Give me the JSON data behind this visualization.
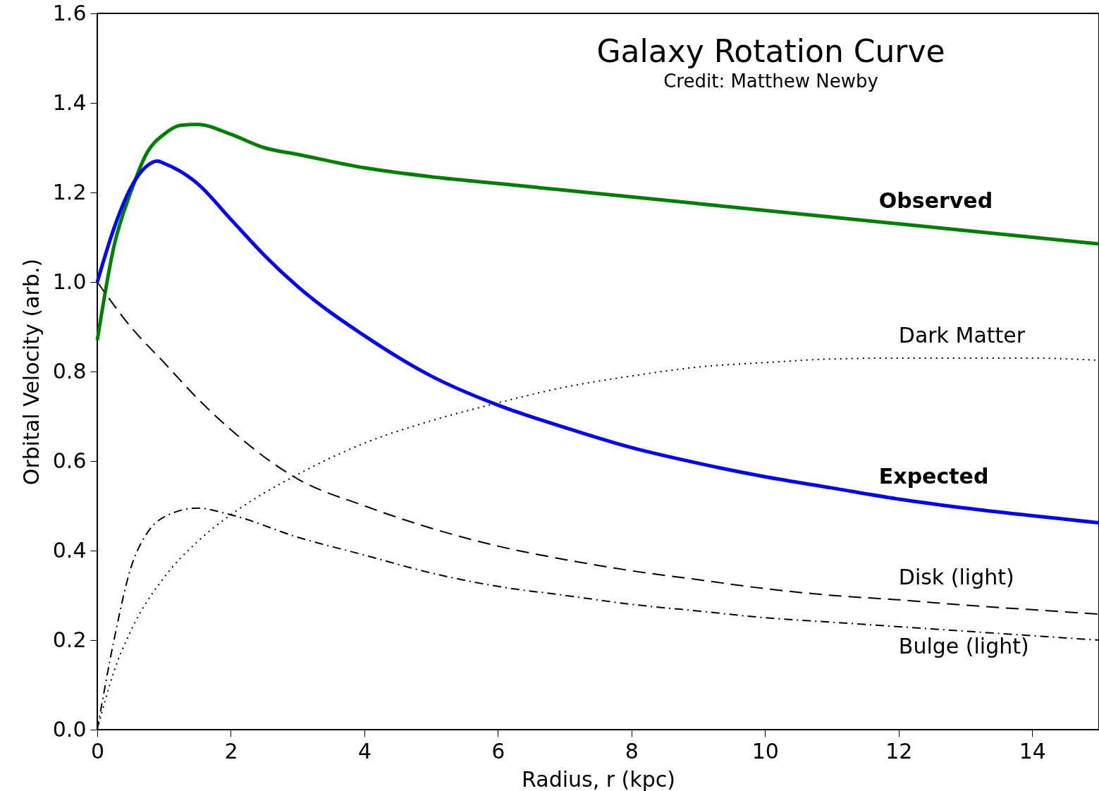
{
  "chart_data": {
    "type": "line",
    "title": "Galaxy Rotation Curve",
    "subtitle": "Credit:  Matthew Newby",
    "xlabel": "Radius, r (kpc)",
    "ylabel": "Orbital Velocity (arb.)",
    "xlim": [
      0,
      15
    ],
    "ylim": [
      0,
      1.6
    ],
    "xticks": [
      0,
      2,
      4,
      6,
      8,
      10,
      12,
      14
    ],
    "yticks": [
      {
        "value": 0,
        "label": "0.0"
      },
      0.2,
      0.4,
      0.6,
      0.8,
      {
        "value": 1,
        "label": "1.0"
      },
      1.2,
      1.4,
      1.6
    ],
    "grid": false,
    "legend": false,
    "series": [
      {
        "name": "Observed",
        "color": "#008000",
        "line_style": "solid",
        "x": [
          0,
          0.25,
          0.5,
          0.75,
          1,
          1.25,
          1.5,
          2,
          2.5,
          3,
          4,
          5,
          6,
          7,
          8,
          9,
          10,
          11,
          12,
          13,
          14,
          15
        ],
        "values": [
          0.87,
          1.08,
          1.2,
          1.29,
          1.33,
          1.35,
          1.352,
          1.33,
          1.3,
          1.285,
          1.255,
          1.235,
          1.22,
          1.205,
          1.19,
          1.175,
          1.16,
          1.145,
          1.13,
          1.115,
          1.1,
          1.085
        ]
      },
      {
        "name": "Expected",
        "color": "#0000ff",
        "line_style": "solid",
        "x": [
          0,
          0.25,
          0.5,
          0.75,
          0.9,
          1,
          1.5,
          2,
          2.5,
          3,
          4,
          5,
          6,
          7,
          8,
          9,
          10,
          11,
          12,
          13,
          14,
          15
        ],
        "values": [
          1.0,
          1.12,
          1.21,
          1.26,
          1.27,
          1.265,
          1.22,
          1.14,
          1.06,
          0.99,
          0.88,
          0.79,
          0.725,
          0.675,
          0.63,
          0.595,
          0.565,
          0.54,
          0.515,
          0.495,
          0.478,
          0.462
        ]
      },
      {
        "name": "Dark Matter",
        "color": "#000000",
        "line_style": "dotted",
        "x": [
          0,
          0.25,
          0.5,
          1,
          1.5,
          2,
          3,
          4,
          5,
          6,
          7,
          8,
          9,
          10,
          11,
          12,
          13,
          14,
          15
        ],
        "values": [
          0,
          0.13,
          0.22,
          0.34,
          0.42,
          0.48,
          0.57,
          0.64,
          0.69,
          0.73,
          0.765,
          0.79,
          0.81,
          0.82,
          0.828,
          0.83,
          0.83,
          0.83,
          0.825
        ]
      },
      {
        "name": "Disk (light)",
        "color": "#000000",
        "line_style": "dashed",
        "x": [
          0,
          0.5,
          1,
          1.5,
          2,
          3,
          4,
          5,
          6,
          7,
          8,
          9,
          10,
          11,
          12,
          13,
          14,
          15
        ],
        "values": [
          1.0,
          0.9,
          0.82,
          0.74,
          0.67,
          0.56,
          0.5,
          0.45,
          0.41,
          0.38,
          0.355,
          0.335,
          0.315,
          0.3,
          0.29,
          0.278,
          0.268,
          0.258
        ]
      },
      {
        "name": "Bulge (light)",
        "color": "#000000",
        "line_style": "dashdot",
        "x": [
          0,
          0.25,
          0.5,
          0.75,
          1,
          1.5,
          2,
          3,
          4,
          5,
          6,
          7,
          8,
          9,
          10,
          11,
          12,
          13,
          14,
          15
        ],
        "values": [
          0,
          0.2,
          0.36,
          0.44,
          0.475,
          0.495,
          0.48,
          0.43,
          0.39,
          0.35,
          0.32,
          0.3,
          0.28,
          0.265,
          0.25,
          0.24,
          0.23,
          0.22,
          0.21,
          0.2
        ]
      }
    ]
  }
}
